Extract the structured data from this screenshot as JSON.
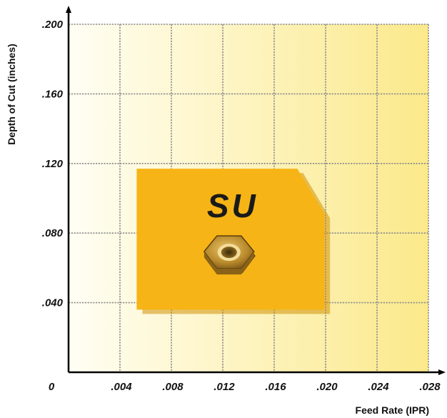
{
  "chart_data": {
    "type": "area",
    "xlabel": "Feed Rate (IPR)",
    "ylabel": "Depth of Cut (inches)",
    "xlim": [
      0,
      0.028
    ],
    "ylim": [
      0,
      0.2
    ],
    "x_ticks": [
      ".004",
      ".008",
      ".012",
      ".016",
      ".020",
      ".024",
      ".028"
    ],
    "y_ticks": [
      ".040",
      ".080",
      ".120",
      ".160",
      ".200"
    ],
    "origin_label": "0",
    "grid": true,
    "region": {
      "label": "SU",
      "color": "#f6b416",
      "points": [
        [
          0.0053,
          0.036
        ],
        [
          0.0199,
          0.036
        ],
        [
          0.0199,
          0.091
        ],
        [
          0.0178,
          0.117
        ],
        [
          0.0053,
          0.117
        ]
      ]
    },
    "insert_icon": "hexagonal-insert-icon"
  }
}
